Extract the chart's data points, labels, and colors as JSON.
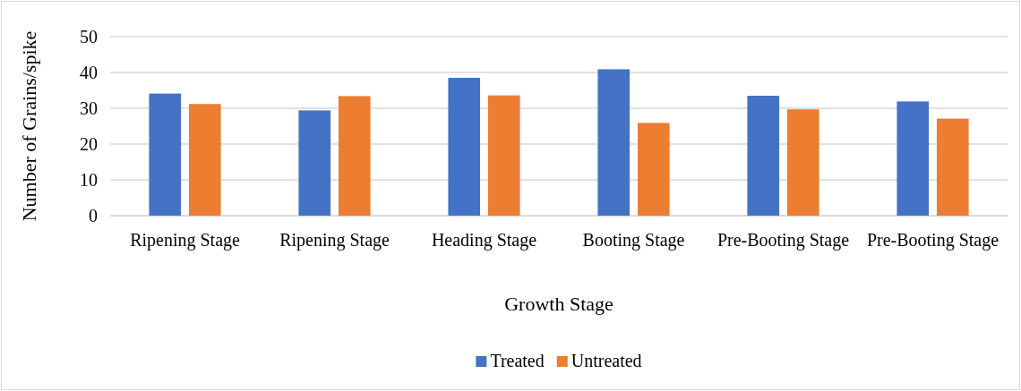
{
  "chart_data": {
    "type": "bar",
    "xlabel": "Growth Stage",
    "ylabel": "Number of Grains/spike",
    "categories": [
      "Ripening Stage",
      "Ripening Stage",
      "Heading Stage",
      "Booting Stage",
      "Pre-Booting Stage",
      "Pre-Booting Stage"
    ],
    "series": [
      {
        "name": "Treated",
        "color": "#4472c4",
        "values": [
          34.1,
          29.4,
          38.5,
          40.9,
          33.5,
          31.9
        ]
      },
      {
        "name": "Untreated",
        "color": "#ed7d31",
        "values": [
          31.2,
          33.4,
          33.6,
          25.9,
          29.7,
          27.1
        ]
      }
    ],
    "ylim": [
      0,
      50
    ],
    "yticks": [
      0,
      10,
      20,
      30,
      40,
      50
    ],
    "grid": "y",
    "legend": "bottom"
  }
}
